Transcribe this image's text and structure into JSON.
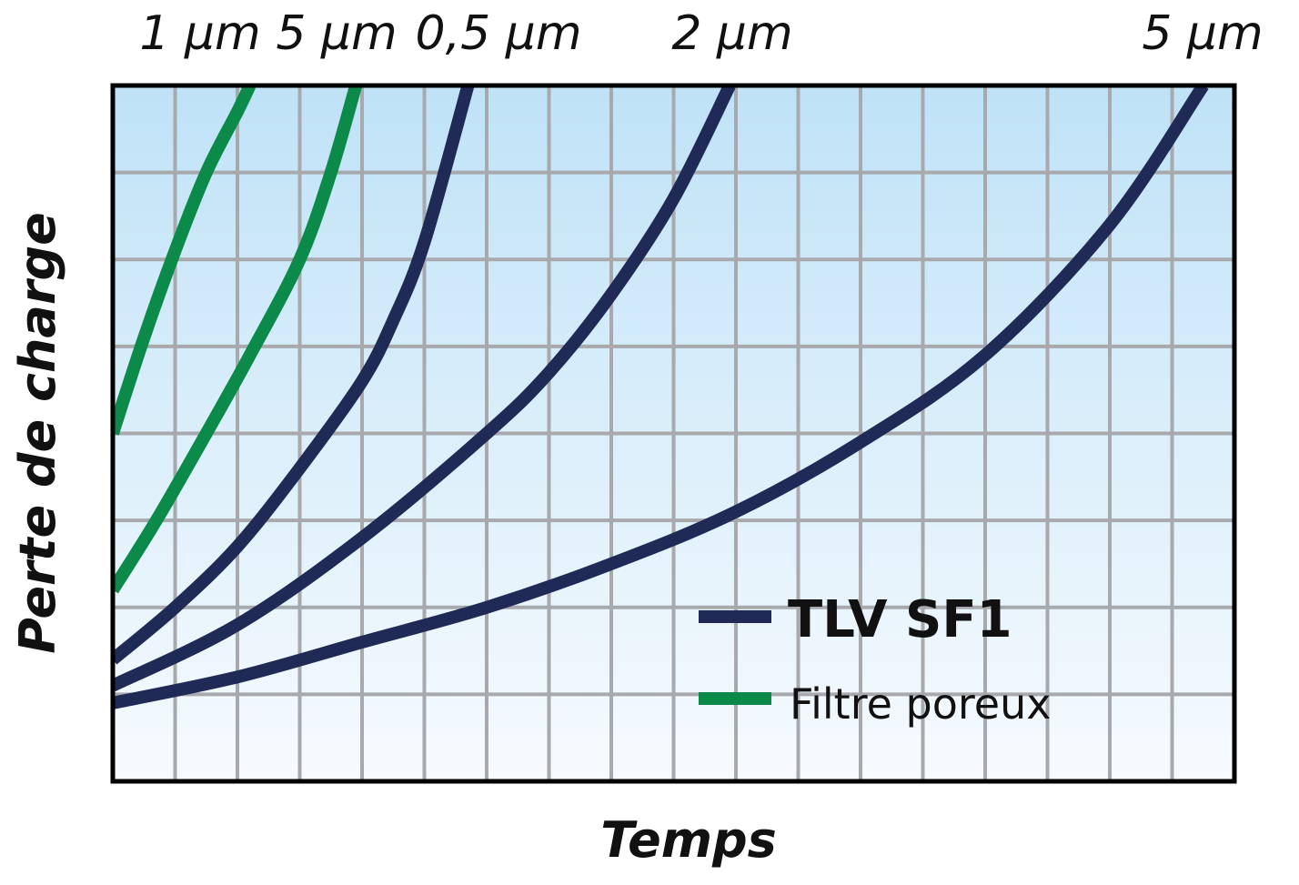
{
  "chart_data": {
    "type": "line",
    "title": "",
    "xlabel": "Temps",
    "ylabel": "Perte de charge",
    "xlim": [
      0,
      18
    ],
    "ylim": [
      0,
      8
    ],
    "grid": true,
    "ticks_labeled": false,
    "legend": {
      "placement": "bottom-right",
      "entries": [
        {
          "label": "TLV SF1",
          "color": "#1f2a56",
          "bold": true
        },
        {
          "label": "Filtre poreux",
          "color": "#0b8a4a",
          "bold": false
        }
      ]
    },
    "series": [
      {
        "label": "1 µm",
        "group": "Filtre poreux",
        "color": "#0b8a4a",
        "x": [
          0,
          0.5,
          1,
          1.5,
          2,
          2.2
        ],
        "y": [
          4,
          5.1,
          6.1,
          7.0,
          7.7,
          8
        ]
      },
      {
        "label": "5 µm",
        "group": "Filtre poreux",
        "color": "#0b8a4a",
        "x": [
          0,
          0.7,
          1.5,
          2.2,
          3,
          3.5,
          3.9
        ],
        "y": [
          2.2,
          3.0,
          4.0,
          4.9,
          6.0,
          7.0,
          8
        ]
      },
      {
        "label": "0,5 µm",
        "group": "TLV SF1",
        "color": "#1f2a56",
        "x": [
          0,
          1,
          2,
          3,
          4,
          4.5,
          5,
          5.7
        ],
        "y": [
          1.4,
          2.0,
          2.7,
          3.6,
          4.6,
          5.3,
          6.2,
          8
        ]
      },
      {
        "label": "2 µm",
        "group": "TLV SF1",
        "color": "#1f2a56",
        "x": [
          0,
          2,
          4,
          6,
          7,
          8,
          9,
          9.9
        ],
        "y": [
          1.1,
          1.8,
          2.8,
          4.0,
          4.7,
          5.6,
          6.7,
          8
        ]
      },
      {
        "label": "5 µm",
        "group": "TLV SF1",
        "color": "#1f2a56",
        "x": [
          0,
          2,
          4,
          6,
          8,
          10,
          12,
          14,
          16,
          17.5
        ],
        "y": [
          0.9,
          1.2,
          1.6,
          2.0,
          2.5,
          3.1,
          3.9,
          4.9,
          6.4,
          8
        ]
      }
    ]
  }
}
